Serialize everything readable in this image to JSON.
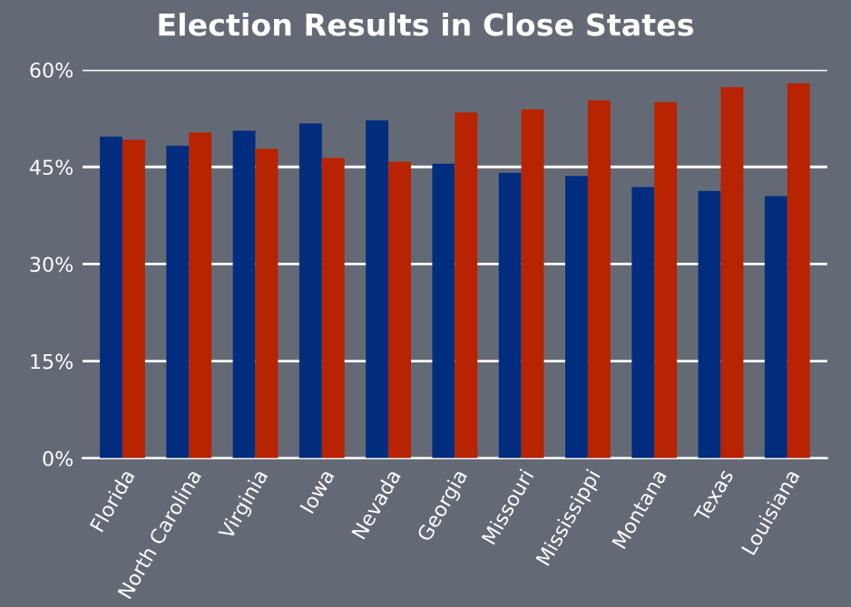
{
  "chart_data": {
    "type": "bar",
    "title": "Election Results in Close States",
    "categories": [
      "Florida",
      "North Carolina",
      "Virginia",
      "Iowa",
      "Nevada",
      "Georgia",
      "Missouri",
      "Mississippi",
      "Montana",
      "Texas",
      "Louisiana"
    ],
    "series": [
      {
        "color": "#022d7f",
        "values": [
          49.7,
          48.3,
          50.6,
          51.7,
          52.2,
          45.5,
          44.1,
          43.6,
          41.9,
          41.3,
          40.5
        ]
      },
      {
        "color": "#b82300",
        "values": [
          49.2,
          50.3,
          47.8,
          46.4,
          45.8,
          53.4,
          53.9,
          55.3,
          55.0,
          57.3,
          57.9
        ]
      }
    ],
    "ylim": [
      0,
      60
    ],
    "yticks": [
      {
        "value": 0,
        "label": "0%"
      },
      {
        "value": 15,
        "label": "15%"
      },
      {
        "value": 30,
        "label": "30%"
      },
      {
        "value": 45,
        "label": "45%"
      },
      {
        "value": 60,
        "label": "60%"
      }
    ],
    "grid": "y",
    "legend": false
  }
}
